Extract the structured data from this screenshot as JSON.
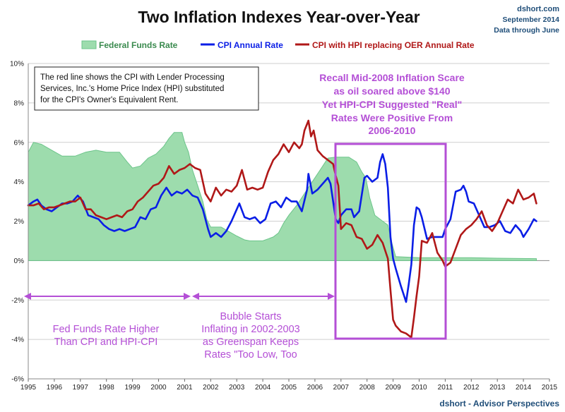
{
  "header": {
    "title": "Two Inflation Indexes Year-over-Year",
    "brand": "dshort.com",
    "date": "September 2014",
    "data_through": "Data through June"
  },
  "footer": "dshort - Advisor Perspectives",
  "note": {
    "lines": [
      "The red line shows the CPI with Lender Processing",
      "Services, Inc.'s  Home Price Index (HPI) substituted",
      "for the CPI's Owner's Equivalent Rent."
    ]
  },
  "annotations": {
    "scare": [
      "Recall Mid-2008 Inflation Scare",
      "as oil soared above $140",
      "Yet HPI-CPI Suggested \"Real\"",
      "Rates Were Positive From",
      "2006-2010"
    ],
    "fed_higher": [
      "Fed Funds Rate Higher",
      "Than CPI and HPI-CPI"
    ],
    "bubble": [
      "Bubble Starts",
      "Inflating in 2002-2003",
      "as Greenspan Keeps",
      "Rates \"Too Low, Too"
    ]
  },
  "colors": {
    "fed": "#9ddcad",
    "fed_edge": "#6cc48a",
    "cpi": "#0a1ee6",
    "hpi": "#b01818",
    "annotation": "#b44fd6",
    "brand": "#1f4e79"
  },
  "chart_data": {
    "type": "line",
    "title": "Two Inflation Indexes Year-over-Year",
    "xlim": [
      1995,
      2015
    ],
    "ylim": [
      -6,
      10
    ],
    "grid": true,
    "legend_position": "top",
    "x_ticks": [
      "1995",
      "1996",
      "1997",
      "1998",
      "1999",
      "2000",
      "2001",
      "2002",
      "2003",
      "2004",
      "2005",
      "2006",
      "2007",
      "2008",
      "2009",
      "2010",
      "2011",
      "2012",
      "2013",
      "2014",
      "2015"
    ],
    "y_ticks": [
      "10%",
      "8%",
      "6%",
      "4%",
      "2%",
      "0%",
      "-2%",
      "-4%",
      "-6%"
    ],
    "series": [
      {
        "name": "Federal Funds Rate",
        "kind": "area",
        "x": [
          1995.0,
          1995.2,
          1995.5,
          1995.9,
          1996.3,
          1996.8,
          1997.2,
          1997.6,
          1998.0,
          1998.5,
          1998.8,
          1999.0,
          1999.3,
          1999.6,
          1999.9,
          2000.2,
          2000.4,
          2000.6,
          2000.9,
          2001.0,
          2001.15,
          2001.3,
          2001.5,
          2001.7,
          2001.85,
          2002.0,
          2002.4,
          2002.8,
          2003.0,
          2003.3,
          2003.5,
          2004.0,
          2004.4,
          2004.6,
          2004.8,
          2005.0,
          2005.3,
          2005.6,
          2005.9,
          2006.2,
          2006.5,
          2006.8,
          2007.0,
          2007.3,
          2007.6,
          2007.8,
          2007.95,
          2008.1,
          2008.3,
          2008.6,
          2008.8,
          2008.95,
          2009.1,
          2010.0,
          2011.0,
          2012.0,
          2013.0,
          2014.5
        ],
        "values": [
          5.5,
          6.0,
          5.9,
          5.6,
          5.3,
          5.3,
          5.5,
          5.6,
          5.5,
          5.5,
          5.0,
          4.7,
          4.8,
          5.2,
          5.4,
          5.8,
          6.2,
          6.5,
          6.5,
          6.0,
          5.5,
          4.6,
          3.8,
          3.0,
          2.1,
          1.7,
          1.7,
          1.4,
          1.25,
          1.05,
          1.0,
          1.0,
          1.2,
          1.4,
          1.9,
          2.3,
          2.8,
          3.4,
          4.0,
          4.6,
          5.2,
          5.25,
          5.25,
          5.25,
          5.0,
          4.5,
          4.2,
          3.2,
          2.3,
          2.0,
          1.8,
          0.9,
          0.2,
          0.15,
          0.15,
          0.15,
          0.12,
          0.1
        ]
      },
      {
        "name": "CPI Annual Rate",
        "kind": "line",
        "x": [
          1995.0,
          1995.2,
          1995.35,
          1995.5,
          1995.7,
          1995.9,
          1996.1,
          1996.3,
          1996.5,
          1996.7,
          1996.9,
          1997.1,
          1997.3,
          1997.5,
          1997.7,
          1997.9,
          1998.1,
          1998.3,
          1998.5,
          1998.7,
          1998.9,
          1999.1,
          1999.3,
          1999.5,
          1999.7,
          1999.9,
          2000.1,
          2000.3,
          2000.5,
          2000.7,
          2000.9,
          2001.1,
          2001.3,
          2001.5,
          2001.7,
          2001.9,
          2002.0,
          2002.2,
          2002.4,
          2002.6,
          2002.8,
          2003.0,
          2003.1,
          2003.3,
          2003.5,
          2003.7,
          2003.9,
          2004.1,
          2004.3,
          2004.5,
          2004.7,
          2004.9,
          2005.1,
          2005.3,
          2005.5,
          2005.7,
          2005.75,
          2005.9,
          2006.1,
          2006.3,
          2006.5,
          2006.6,
          2006.8,
          2006.9,
          2007.0,
          2007.2,
          2007.4,
          2007.5,
          2007.7,
          2007.9,
          2008.0,
          2008.2,
          2008.4,
          2008.5,
          2008.6,
          2008.7,
          2008.8,
          2008.9,
          2009.0,
          2009.1,
          2009.3,
          2009.5,
          2009.6,
          2009.7,
          2009.8,
          2009.9,
          2010.0,
          2010.1,
          2010.3,
          2010.5,
          2010.7,
          2010.9,
          2011.0,
          2011.2,
          2011.4,
          2011.6,
          2011.7,
          2011.8,
          2011.9,
          2012.1,
          2012.3,
          2012.5,
          2012.7,
          2012.9,
          2013.1,
          2013.3,
          2013.5,
          2013.7,
          2013.9,
          2014.0,
          2014.2,
          2014.4,
          2014.5
        ],
        "values": [
          2.8,
          3.0,
          3.1,
          2.8,
          2.6,
          2.5,
          2.7,
          2.9,
          2.9,
          3.0,
          3.3,
          3.0,
          2.3,
          2.2,
          2.1,
          1.8,
          1.6,
          1.5,
          1.6,
          1.5,
          1.6,
          1.7,
          2.2,
          2.1,
          2.6,
          2.7,
          3.3,
          3.7,
          3.3,
          3.5,
          3.4,
          3.6,
          3.3,
          3.2,
          2.6,
          1.6,
          1.2,
          1.4,
          1.2,
          1.5,
          2.0,
          2.6,
          2.9,
          2.2,
          2.1,
          2.2,
          1.9,
          2.1,
          2.9,
          3.0,
          2.7,
          3.2,
          3.0,
          3.0,
          2.5,
          3.6,
          4.4,
          3.4,
          3.6,
          3.9,
          4.2,
          3.9,
          2.1,
          1.9,
          2.3,
          2.6,
          2.6,
          2.2,
          2.5,
          4.2,
          4.3,
          4.0,
          4.2,
          5.0,
          5.4,
          4.9,
          3.7,
          1.2,
          0.1,
          -0.4,
          -1.3,
          -2.1,
          -1.2,
          -0.2,
          1.8,
          2.7,
          2.6,
          2.2,
          1.1,
          1.2,
          1.2,
          1.2,
          1.6,
          2.1,
          3.5,
          3.6,
          3.8,
          3.5,
          3.0,
          2.9,
          2.3,
          1.7,
          1.7,
          1.8,
          2.0,
          1.5,
          1.4,
          1.8,
          1.5,
          1.2,
          1.6,
          2.1,
          2.0
        ]
      },
      {
        "name": "CPI with HPI replacing OER Annual Rate",
        "kind": "line",
        "x": [
          1995.0,
          1995.2,
          1995.4,
          1995.6,
          1995.8,
          1996.0,
          1996.2,
          1996.4,
          1996.6,
          1996.8,
          1997.0,
          1997.2,
          1997.4,
          1997.6,
          1997.8,
          1998.0,
          1998.2,
          1998.4,
          1998.6,
          1998.8,
          1999.0,
          1999.2,
          1999.4,
          1999.6,
          1999.8,
          2000.0,
          2000.2,
          2000.4,
          2000.6,
          2000.8,
          2001.0,
          2001.2,
          2001.4,
          2001.6,
          2001.8,
          2002.0,
          2002.2,
          2002.4,
          2002.6,
          2002.8,
          2003.0,
          2003.2,
          2003.4,
          2003.6,
          2003.8,
          2004.0,
          2004.2,
          2004.4,
          2004.6,
          2004.8,
          2005.0,
          2005.2,
          2005.4,
          2005.5,
          2005.6,
          2005.75,
          2005.85,
          2005.95,
          2006.1,
          2006.3,
          2006.5,
          2006.7,
          2006.8,
          2006.9,
          2007.0,
          2007.2,
          2007.4,
          2007.6,
          2007.8,
          2008.0,
          2008.2,
          2008.4,
          2008.6,
          2008.8,
          2008.9,
          2009.0,
          2009.1,
          2009.3,
          2009.5,
          2009.7,
          2009.8,
          2009.9,
          2010.0,
          2010.1,
          2010.3,
          2010.5,
          2010.7,
          2010.9,
          2011.0,
          2011.2,
          2011.4,
          2011.6,
          2011.8,
          2012.0,
          2012.2,
          2012.4,
          2012.6,
          2012.8,
          2013.0,
          2013.2,
          2013.4,
          2013.6,
          2013.8,
          2014.0,
          2014.2,
          2014.4,
          2014.5
        ],
        "values": [
          2.8,
          2.8,
          2.9,
          2.6,
          2.7,
          2.7,
          2.8,
          2.9,
          3.0,
          3.0,
          3.2,
          2.6,
          2.6,
          2.3,
          2.2,
          2.1,
          2.2,
          2.3,
          2.2,
          2.5,
          2.6,
          3.0,
          3.2,
          3.5,
          3.8,
          3.9,
          4.2,
          4.8,
          4.4,
          4.6,
          4.7,
          4.9,
          4.7,
          4.6,
          3.4,
          3.0,
          3.7,
          3.3,
          3.6,
          3.5,
          3.8,
          4.6,
          3.6,
          3.7,
          3.6,
          3.7,
          4.5,
          5.1,
          5.4,
          5.9,
          5.5,
          6.0,
          5.7,
          5.9,
          6.6,
          7.1,
          6.3,
          6.6,
          5.6,
          5.3,
          5.1,
          4.9,
          4.3,
          3.8,
          1.6,
          1.9,
          1.8,
          1.2,
          1.1,
          0.6,
          0.8,
          1.3,
          0.9,
          0.1,
          -1.5,
          -3.0,
          -3.3,
          -3.6,
          -3.7,
          -3.9,
          -2.9,
          -1.8,
          -0.8,
          1.0,
          0.9,
          1.4,
          0.4,
          0.0,
          -0.3,
          -0.1,
          0.6,
          1.3,
          1.6,
          1.8,
          2.1,
          2.5,
          1.8,
          1.5,
          1.9,
          2.5,
          3.1,
          2.9,
          3.6,
          3.1,
          3.2,
          3.4,
          2.9
        ]
      }
    ]
  }
}
